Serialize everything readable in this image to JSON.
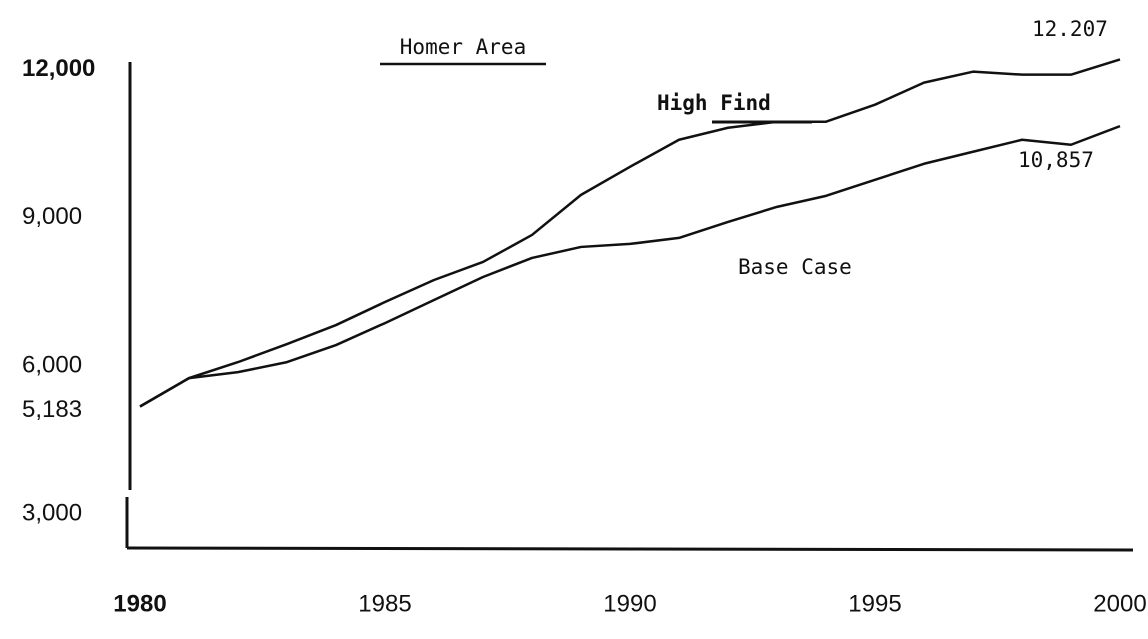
{
  "chart_data": {
    "type": "line",
    "title": "Homer Area",
    "x": [
      1980,
      1981,
      1982,
      1983,
      1984,
      1985,
      1986,
      1987,
      1988,
      1989,
      1990,
      1991,
      1992,
      1993,
      1994,
      1995,
      1996,
      1997,
      1998,
      1999,
      2000
    ],
    "series": [
      {
        "name": "High Find",
        "color": "#111111",
        "values": [
          5183,
          5757,
          6081,
          6446,
          6831,
          7297,
          7743,
          8108,
          8655,
          9466,
          10034,
          10581,
          10824,
          10946,
          10946,
          11291,
          11737,
          11959,
          11899,
          11899,
          12207
        ]
      },
      {
        "name": "Base Case",
        "color": "#111111",
        "values": [
          5183,
          5757,
          5878,
          6081,
          6426,
          6871,
          7338,
          7804,
          8189,
          8412,
          8473,
          8595,
          8919,
          9223,
          9446,
          9770,
          10095,
          10338,
          10581,
          10480,
          10857
        ]
      }
    ],
    "annotations": [
      "12.207",
      "10,857"
    ],
    "xlim": [
      1980,
      2000
    ],
    "xticks": [
      1980,
      1985,
      1990,
      1995,
      2000
    ],
    "ylim": [
      2400,
      12600
    ],
    "yticks": [
      {
        "value": 3000,
        "label": "3,000"
      },
      {
        "value": 5183,
        "label": "5,183"
      },
      {
        "value": 6000,
        "label": "6,000"
      },
      {
        "value": 9000,
        "label": "9,000"
      },
      {
        "value": 12000,
        "label": "12,000"
      }
    ],
    "grid": false
  }
}
